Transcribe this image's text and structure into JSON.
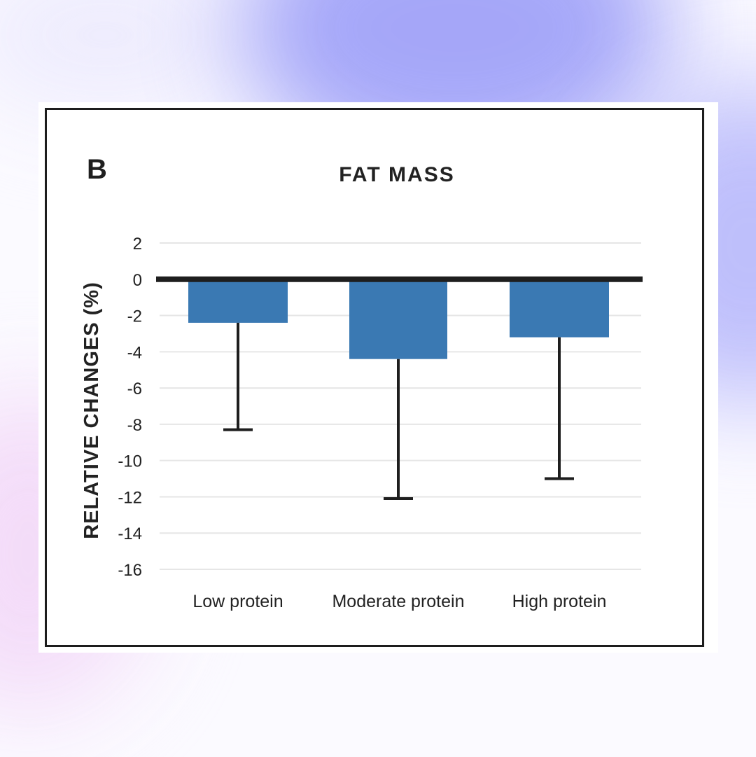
{
  "panel_letter": "B",
  "chart_data": {
    "type": "bar",
    "title": "FAT MASS",
    "xlabel": "",
    "ylabel": "RELATIVE CHANGES (%)",
    "categories": [
      "Low protein",
      "Moderate protein",
      "High protein"
    ],
    "values": [
      -2.4,
      -4.4,
      -3.2
    ],
    "error_lower": [
      -8.3,
      -12.1,
      -11.0
    ],
    "ylim": [
      -16,
      2
    ],
    "yticks": [
      2,
      0,
      -2,
      -4,
      -6,
      -8,
      -10,
      -12,
      -14,
      -16
    ],
    "grid": true,
    "colors": {
      "bar": "#3a79b3",
      "axis": "#1e1e1e",
      "grid": "#e6e6e6",
      "error": "#1e1e1e"
    }
  }
}
